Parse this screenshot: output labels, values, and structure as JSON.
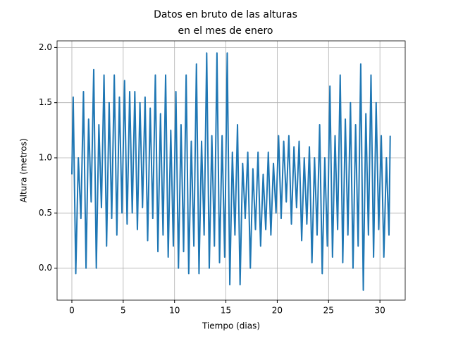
{
  "chart_data": {
    "type": "line",
    "title": [
      "Datos en bruto de las alturas",
      "en el mes de enero"
    ],
    "x_label": "Tiempo (dias)",
    "y_label": "Altura (metros)",
    "color": "#1f77b4",
    "grid": true,
    "xlim": [
      -1.44,
      32.46
    ],
    "ylim": [
      -0.29,
      2.06
    ],
    "xticks": [
      0,
      5,
      10,
      15,
      20,
      25,
      30
    ],
    "yticks": [
      {
        "value": 0,
        "label": "0.0"
      },
      0.5,
      {
        "value": 1,
        "label": "1.0"
      },
      1.5,
      {
        "value": 2,
        "label": "2.0"
      }
    ],
    "x": [
      0,
      0.13,
      0.38,
      0.63,
      0.88,
      1.13,
      1.38,
      1.63,
      1.88,
      2.13,
      2.38,
      2.63,
      2.88,
      3.13,
      3.38,
      3.63,
      3.88,
      4.13,
      4.38,
      4.63,
      4.88,
      5.13,
      5.38,
      5.63,
      5.88,
      6.13,
      6.38,
      6.63,
      6.88,
      7.13,
      7.38,
      7.63,
      7.88,
      8.13,
      8.38,
      8.63,
      8.88,
      9.13,
      9.38,
      9.63,
      9.88,
      10.13,
      10.38,
      10.63,
      10.88,
      11.13,
      11.38,
      11.63,
      11.88,
      12.13,
      12.38,
      12.63,
      12.88,
      13.13,
      13.38,
      13.63,
      13.88,
      14.13,
      14.38,
      14.63,
      14.88,
      15.13,
      15.38,
      15.63,
      15.88,
      16.13,
      16.38,
      16.63,
      16.88,
      17.13,
      17.38,
      17.63,
      17.88,
      18.13,
      18.38,
      18.63,
      18.88,
      19.13,
      19.38,
      19.63,
      19.88,
      20.13,
      20.38,
      20.63,
      20.88,
      21.13,
      21.38,
      21.63,
      21.88,
      22.13,
      22.38,
      22.63,
      22.88,
      23.13,
      23.38,
      23.63,
      23.88,
      24.13,
      24.38,
      24.63,
      24.88,
      25.13,
      25.38,
      25.63,
      25.88,
      26.13,
      26.38,
      26.63,
      26.88,
      27.13,
      27.38,
      27.63,
      27.88,
      28.13,
      28.38,
      28.63,
      28.88,
      29.13,
      29.38,
      29.63,
      29.88,
      30.13,
      30.38,
      30.63,
      30.88,
      31
    ],
    "values": [
      0.85,
      1.55,
      -0.05,
      1.0,
      0.45,
      1.6,
      0.0,
      1.35,
      0.6,
      1.8,
      0.0,
      1.3,
      0.55,
      1.75,
      0.2,
      1.5,
      0.45,
      1.75,
      0.3,
      1.55,
      0.5,
      1.7,
      0.4,
      1.6,
      0.5,
      1.6,
      0.35,
      1.5,
      0.55,
      1.55,
      0.25,
      1.45,
      0.45,
      1.75,
      0.15,
      1.4,
      0.3,
      1.75,
      0.1,
      1.25,
      0.2,
      1.6,
      0.0,
      1.3,
      0.15,
      1.75,
      -0.05,
      1.15,
      0.2,
      1.85,
      -0.05,
      1.15,
      0.3,
      1.95,
      0.0,
      1.2,
      0.2,
      1.95,
      0.05,
      1.2,
      0.1,
      1.95,
      -0.15,
      1.05,
      0.3,
      1.3,
      -0.15,
      0.95,
      0.45,
      1.05,
      0.0,
      0.9,
      0.35,
      1.05,
      0.2,
      0.85,
      0.35,
      1.05,
      0.3,
      0.95,
      0.5,
      1.2,
      0.45,
      1.15,
      0.6,
      1.2,
      0.4,
      1.1,
      0.55,
      1.15,
      0.25,
      1.0,
      0.4,
      1.1,
      0.05,
      1.0,
      0.3,
      1.3,
      -0.05,
      1.0,
      0.2,
      1.65,
      0.1,
      1.2,
      0.35,
      1.75,
      0.05,
      1.35,
      0.3,
      1.5,
      0.0,
      1.3,
      0.2,
      1.85,
      -0.2,
      1.4,
      0.3,
      1.75,
      0.1,
      1.5,
      0.35,
      1.2,
      0.1,
      1.0,
      0.3,
      1.2
    ]
  }
}
